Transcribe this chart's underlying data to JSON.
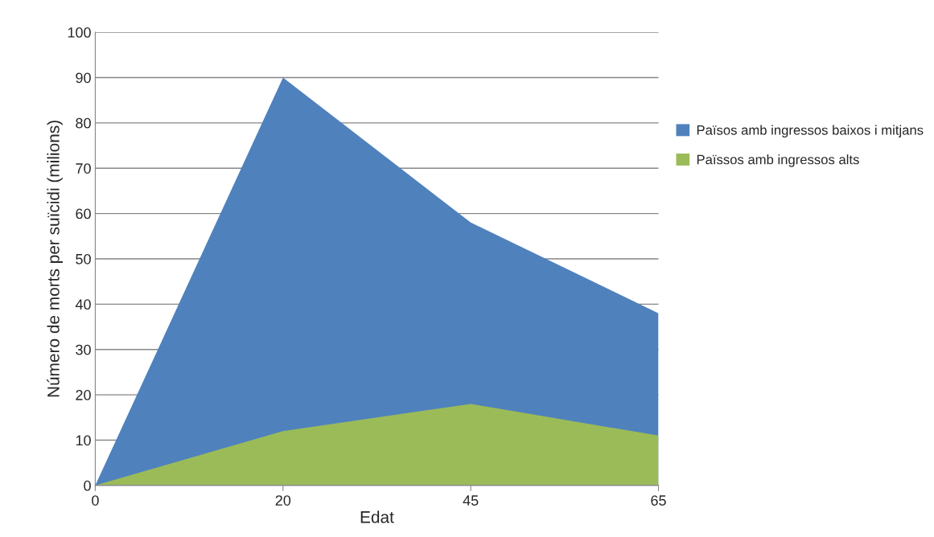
{
  "chart_data": {
    "type": "area",
    "categories": [
      "0",
      "20",
      "45",
      "65"
    ],
    "xlabel": "Edat",
    "ylabel": "Número de morts per suïcidi (milions)",
    "ylim": [
      0,
      100
    ],
    "yticks": [
      0,
      10,
      20,
      30,
      40,
      50,
      60,
      70,
      80,
      90,
      100
    ],
    "grid": "y",
    "legend": "right",
    "series": [
      {
        "name": "Països amb ingressos baixos i mitjans",
        "color": "#4f81bd",
        "values": [
          0,
          90,
          58,
          38
        ]
      },
      {
        "name": "Païssos amb ingressos alts",
        "color": "#9bbb59",
        "values": [
          0,
          12,
          18,
          11
        ]
      }
    ]
  }
}
